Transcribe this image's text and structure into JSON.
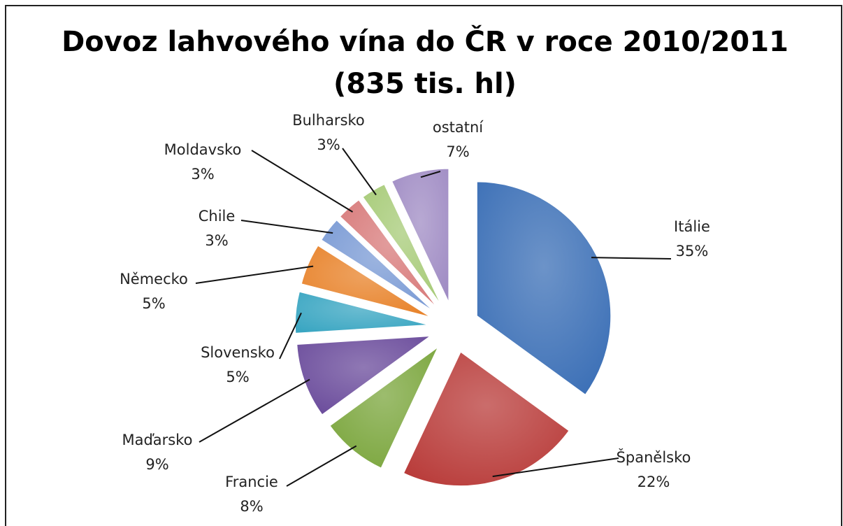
{
  "chart_data": {
    "type": "pie",
    "title": "Dovoz lahvového vína do ČR v roce 2010/2011",
    "subtitle": "(835 tis. hl)",
    "categories": [
      "Itálie",
      "Španělsko",
      "Francie",
      "Maďarsko",
      "Slovensko",
      "Německo",
      "Chile",
      "Moldavsko",
      "Bulharsko",
      "ostatní"
    ],
    "values": [
      35,
      22,
      8,
      9,
      5,
      5,
      3,
      3,
      3,
      7
    ],
    "value_labels": [
      "35%",
      "22%",
      "8%",
      "9%",
      "5%",
      "5%",
      "3%",
      "3%",
      "3%",
      "7%"
    ],
    "colors": [
      "#3b6fb6",
      "#b93c3a",
      "#7ba63d",
      "#6a4b9b",
      "#3aa6c2",
      "#e8832b",
      "#7b9bd5",
      "#d87b7b",
      "#a7cb78",
      "#a08cc4"
    ]
  }
}
